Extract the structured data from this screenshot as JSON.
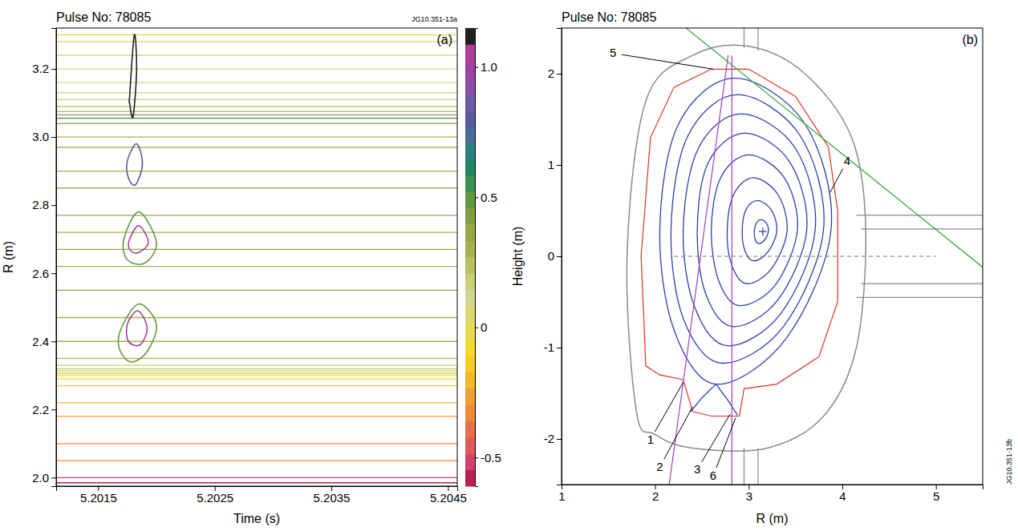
{
  "chart_data": [
    {
      "type": "contour",
      "title": "Pulse No: 78085",
      "code": "JG10.351-13a",
      "panel_label": "(a)",
      "xlabel": "Time (s)",
      "ylabel": "R (m)",
      "xlim": [
        5.20114,
        5.20458
      ],
      "xticks": [
        5.2015,
        5.2025,
        5.2035,
        5.2045
      ],
      "ylim": [
        1.975,
        3.32
      ],
      "yticks": [
        {
          "value": 2,
          "label": "2.0"
        },
        2.2,
        2.4,
        2.6,
        2.8,
        {
          "value": 3,
          "label": "3.0"
        },
        3.2
      ],
      "colorbar": {
        "range": [
          -0.61,
          1.15
        ],
        "ticks": [
          -0.5,
          0,
          0.5,
          {
            "value": 1,
            "label": "1.0"
          }
        ],
        "colors": [
          "#b8204e",
          "#d4406a",
          "#e05a5a",
          "#e8704a",
          "#ee8a3c",
          "#f0a030",
          "#f5b82a",
          "#f8cc20",
          "#f5d830",
          "#e8d850",
          "#dcd870",
          "#d0d890",
          "#c8d078",
          "#b8c060",
          "#a8b050",
          "#98a840",
          "#80a040",
          "#60983e",
          "#3a9050",
          "#208868",
          "#2a8080",
          "#4a6a9a",
          "#5a5aa0",
          "#7058a8",
          "#8a4ca8",
          "#a040a0",
          "#b03c98",
          "#202020"
        ]
      },
      "lines": [
        {
          "R": 1.985,
          "z": -0.55
        },
        {
          "R": 2.0,
          "z": -0.5
        },
        {
          "R": 2.05,
          "z": -0.35
        },
        {
          "R": 2.1,
          "z": -0.3
        },
        {
          "R": 2.18,
          "z": -0.25
        },
        {
          "R": 2.22,
          "z": -0.2
        },
        {
          "R": 2.27,
          "z": -0.15
        },
        {
          "R": 2.29,
          "z": -0.1
        },
        {
          "R": 2.3,
          "z": -0.05
        },
        {
          "R": 2.305,
          "z": 0.0
        },
        {
          "R": 2.31,
          "z": 0.05
        },
        {
          "R": 2.315,
          "z": 0.1
        },
        {
          "R": 2.32,
          "z": 0.15
        },
        {
          "R": 2.33,
          "z": 0.2
        },
        {
          "R": 2.35,
          "z": 0.25
        },
        {
          "R": 2.4,
          "z": 0.3
        },
        {
          "R": 2.47,
          "z": 0.3
        },
        {
          "R": 2.55,
          "z": 0.35
        },
        {
          "R": 2.62,
          "z": 0.3
        },
        {
          "R": 2.67,
          "z": 0.35
        },
        {
          "R": 2.72,
          "z": 0.3
        },
        {
          "R": 2.77,
          "z": 0.35
        },
        {
          "R": 2.85,
          "z": 0.35
        },
        {
          "R": 2.9,
          "z": 0.3
        },
        {
          "R": 2.97,
          "z": 0.35
        },
        {
          "R": 3.0,
          "z": 0.3
        },
        {
          "R": 3.04,
          "z": 0.45
        },
        {
          "R": 3.055,
          "z": 0.55
        },
        {
          "R": 3.065,
          "z": 0.4
        },
        {
          "R": 3.075,
          "z": 0.3
        },
        {
          "R": 3.09,
          "z": 0.25
        },
        {
          "R": 3.11,
          "z": 0.2
        },
        {
          "R": 3.13,
          "z": 0.15
        },
        {
          "R": 3.16,
          "z": 0.1
        },
        {
          "R": 3.2,
          "z": 0.1
        },
        {
          "R": 3.24,
          "z": 0.05
        },
        {
          "R": 3.28,
          "z": 0.05
        },
        {
          "R": 3.3,
          "z": 0.0
        }
      ],
      "blobs": [
        {
          "z": 0.5,
          "x": [
            5.2017,
            5.20185,
            5.202,
            5.20192,
            5.20178,
            5.20168
          ],
          "y": [
            2.44,
            2.51,
            2.45,
            2.37,
            2.34,
            2.38
          ]
        },
        {
          "z": 1.0,
          "x": [
            5.20175,
            5.20184,
            5.20192,
            5.20186,
            5.20176
          ],
          "y": [
            2.45,
            2.49,
            2.44,
            2.39,
            2.4
          ]
        },
        {
          "z": 0.5,
          "x": [
            5.20172,
            5.20185,
            5.202,
            5.2019,
            5.20175
          ],
          "y": [
            2.7,
            2.78,
            2.69,
            2.63,
            2.64
          ]
        },
        {
          "z": 1.0,
          "x": [
            5.20177,
            5.20185,
            5.20193,
            5.20184,
            5.20177
          ],
          "y": [
            2.7,
            2.74,
            2.69,
            2.66,
            2.67
          ]
        },
        {
          "z": 0.8,
          "x": [
            5.20175,
            5.20183,
            5.20188,
            5.20182,
            5.20176
          ],
          "y": [
            2.93,
            2.98,
            2.92,
            2.86,
            2.88
          ]
        },
        {
          "z": 1.1,
          "x": [
            5.20177,
            5.20181,
            5.20183,
            5.2018,
            5.20177
          ],
          "y": [
            3.12,
            3.3,
            3.2,
            3.06,
            3.1
          ]
        }
      ]
    },
    {
      "type": "cross_section",
      "title": "Pulse No: 78085",
      "code": "JG10.351-13b",
      "panel_label": "(b)",
      "xlabel": "R (m)",
      "ylabel": "Height (m)",
      "xlim": [
        1,
        5.5
      ],
      "xticks": [
        1,
        2,
        3,
        4,
        5
      ],
      "ylim": [
        -2.5,
        2.5
      ],
      "yticks": [
        -2,
        -1,
        0,
        1,
        2
      ],
      "vessel": {
        "color": "#8a8a8a",
        "x": [
          1.8,
          1.7,
          1.9,
          2.4,
          3.0,
          3.6,
          4.1,
          4.25,
          4.15,
          3.8,
          3.2,
          2.4,
          2.0
        ],
        "y": [
          -1.7,
          0.0,
          1.7,
          2.2,
          2.3,
          2.0,
          1.3,
          0.3,
          -1.0,
          -1.75,
          -2.1,
          -2.1,
          -1.95
        ]
      },
      "ports": {
        "color": "#8a8a8a",
        "segments": [
          {
            "x": [
              4.15,
              5.5
            ],
            "y": [
              0.45,
              0.45
            ]
          },
          {
            "x": [
              4.2,
              5.5
            ],
            "y": [
              0.3,
              0.3
            ]
          },
          {
            "x": [
              4.2,
              5.5
            ],
            "y": [
              -0.3,
              -0.3
            ]
          },
          {
            "x": [
              4.15,
              5.5
            ],
            "y": [
              -0.45,
              -0.45
            ]
          },
          {
            "x": [
              2.95,
              2.95
            ],
            "y": [
              2.28,
              2.5
            ]
          },
          {
            "x": [
              3.1,
              3.1
            ],
            "y": [
              2.25,
              2.5
            ]
          },
          {
            "x": [
              2.95,
              2.95
            ],
            "y": [
              -2.1,
              -2.5
            ]
          },
          {
            "x": [
              3.1,
              3.1
            ],
            "y": [
              -2.1,
              -2.5
            ]
          }
        ]
      },
      "wall": {
        "color": "#e0302a",
        "x": [
          1.9,
          1.85,
          1.95,
          2.2,
          2.6,
          3.0,
          3.5,
          3.85,
          3.95,
          3.95,
          3.75,
          3.3,
          2.95,
          2.9,
          2.6,
          2.4,
          2.3,
          2.05
        ],
        "y": [
          -1.2,
          0.0,
          1.3,
          1.85,
          2.05,
          2.05,
          1.75,
          1.2,
          0.5,
          -0.5,
          -1.1,
          -1.4,
          -1.45,
          -1.75,
          -1.75,
          -1.7,
          -1.35,
          -1.3
        ]
      },
      "flux_surfaces": {
        "color": "#2b3fb0",
        "surfaces": [
          {
            "x": [
              3.21,
              3.19,
              3.13,
              3.08,
              3.06,
              3.07,
              3.11,
              3.17
            ],
            "y": [
              0.27,
              0.36,
              0.4,
              0.36,
              0.27,
              0.18,
              0.14,
              0.18
            ]
          },
          {
            "x": [
              3.3,
              3.24,
              3.09,
              2.97,
              2.93,
              2.96,
              3.05,
              3.2
            ],
            "y": [
              0.28,
              0.51,
              0.61,
              0.51,
              0.28,
              0.06,
              -0.05,
              0.04
            ]
          },
          {
            "x": [
              3.41,
              3.31,
              3.05,
              2.84,
              2.77,
              2.82,
              2.98,
              3.24
            ],
            "y": [
              0.28,
              0.68,
              0.86,
              0.68,
              0.28,
              -0.1,
              -0.3,
              -0.14
            ]
          },
          {
            "x": [
              3.52,
              3.38,
              3.0,
              2.7,
              2.6,
              2.68,
              2.9,
              3.28
            ],
            "y": [
              0.29,
              0.86,
              1.11,
              0.86,
              0.29,
              -0.27,
              -0.54,
              -0.32
            ]
          },
          {
            "x": [
              3.62,
              3.44,
              2.96,
              2.57,
              2.45,
              2.54,
              2.83,
              3.31
            ],
            "y": [
              0.29,
              1.03,
              1.35,
              1.03,
              0.29,
              -0.41,
              -0.77,
              -0.48
            ]
          },
          {
            "x": [
              3.71,
              3.5,
              2.92,
              2.46,
              2.3,
              2.42,
              2.77,
              3.34
            ],
            "y": [
              0.29,
              1.18,
              1.56,
              1.18,
              0.29,
              -0.55,
              -0.98,
              -0.63
            ]
          },
          {
            "x": [
              3.8,
              3.55,
              2.88,
              2.35,
              2.17,
              2.3,
              2.71,
              3.37
            ],
            "y": [
              0.3,
              1.32,
              1.77,
              1.32,
              0.3,
              -0.68,
              -1.17,
              -0.77
            ]
          },
          {
            "x": [
              3.88,
              3.6,
              2.85,
              2.25,
              2.05,
              2.2,
              2.65,
              3.4
            ],
            "y": [
              0.3,
              1.45,
              1.95,
              1.45,
              0.3,
              -0.8,
              -1.4,
              -0.9
            ]
          }
        ]
      },
      "divertor_legs": {
        "color": "#2b3fb0",
        "legs": [
          {
            "x": [
              2.65,
              2.5,
              2.38
            ],
            "y": [
              -1.4,
              -1.55,
              -1.7
            ]
          },
          {
            "x": [
              2.65,
              2.78,
              2.88
            ],
            "y": [
              -1.4,
              -1.58,
              -1.74
            ]
          }
        ]
      },
      "sight_lines": [
        {
          "color": "#3caa3c",
          "x": [
            2.33,
            5.5
          ],
          "y": [
            2.5,
            -0.12
          ]
        },
        {
          "color": "#a64dc8",
          "x": [
            2.82,
            2.82
          ],
          "y": [
            2.2,
            -2.5
          ]
        },
        {
          "color": "#a64dc8",
          "x": [
            2.78,
            2.15
          ],
          "y": [
            2.2,
            -2.5
          ]
        }
      ],
      "midplane": {
        "color": "#777777",
        "line_style": "dashed",
        "x": [
          2.2,
          5.0
        ],
        "y": [
          0,
          0
        ]
      },
      "magnetic_axis": {
        "x": 3.15,
        "y": 0.27,
        "marker": "plus"
      },
      "annotations": [
        {
          "text": "1",
          "x": 1.95,
          "y": -2.05,
          "target": [
            2.3,
            -1.38
          ]
        },
        {
          "text": "2",
          "x": 2.05,
          "y": -2.35,
          "target": [
            2.4,
            -1.65
          ]
        },
        {
          "text": "3",
          "x": 2.45,
          "y": -2.38,
          "target": [
            2.8,
            -1.73
          ]
        },
        {
          "text": "6",
          "x": 2.62,
          "y": -2.45,
          "target": [
            2.86,
            -1.77
          ]
        },
        {
          "text": "4",
          "x": 4.05,
          "y": 1.0,
          "target": [
            3.87,
            0.7
          ]
        },
        {
          "text": "5",
          "x": 1.55,
          "y": 2.18,
          "target": [
            2.62,
            2.05
          ]
        }
      ]
    }
  ]
}
